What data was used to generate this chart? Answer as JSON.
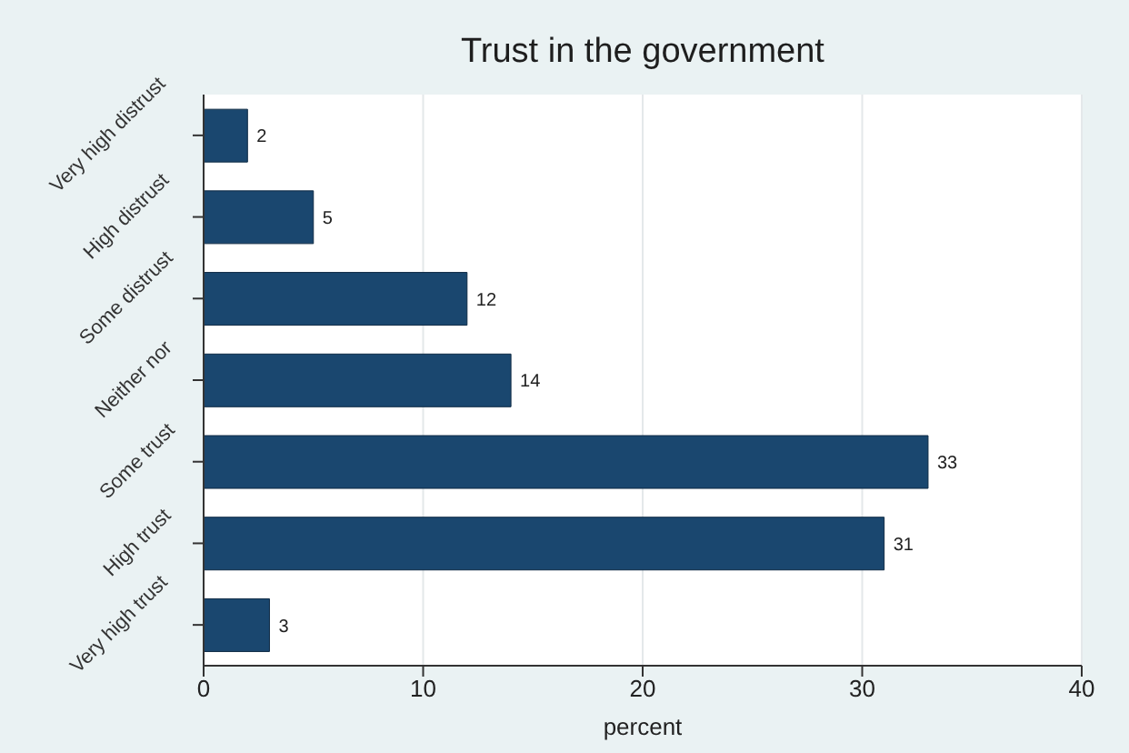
{
  "chart_data": {
    "type": "bar",
    "orientation": "horizontal",
    "title": "Trust in the government",
    "xlabel": "percent",
    "categories": [
      "Very high distrust",
      "High distrust",
      "Some distrust",
      "Neither nor",
      "Some trust",
      "High trust",
      "Very high trust"
    ],
    "values": [
      2,
      5,
      12,
      14,
      33,
      31,
      3
    ],
    "color": "#1a476f",
    "xlim": [
      0,
      40
    ],
    "xticks": [
      0,
      10,
      20,
      30,
      40
    ],
    "grid": "x",
    "data_labels": true
  }
}
